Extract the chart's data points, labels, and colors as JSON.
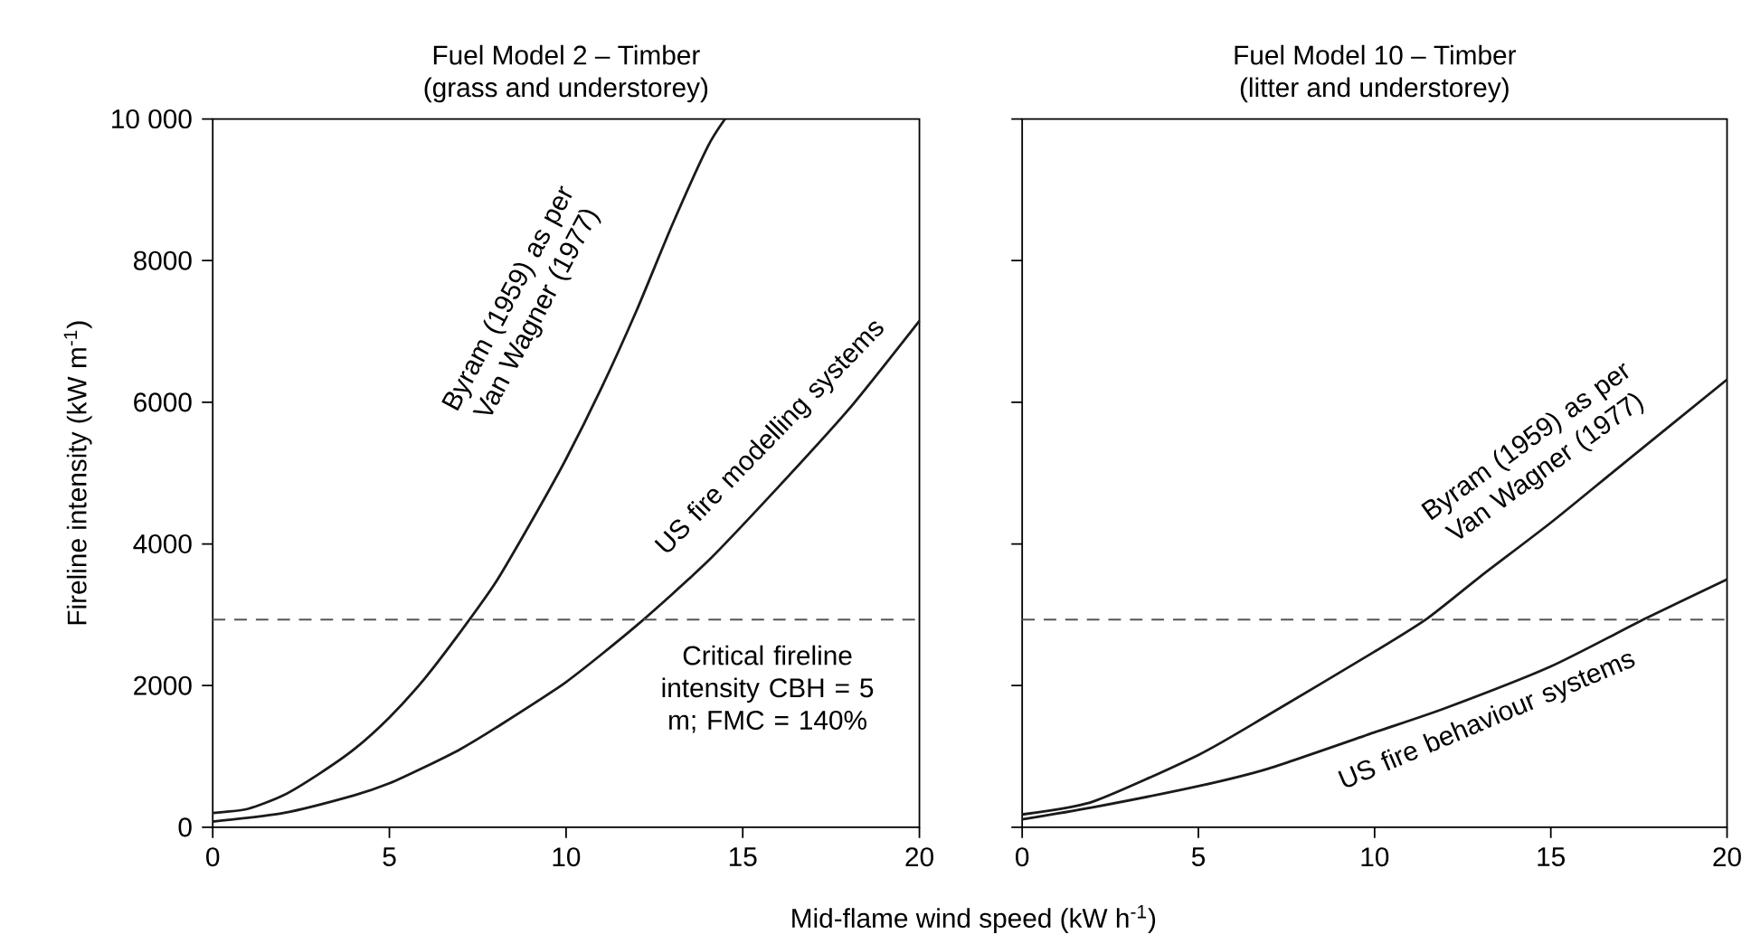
{
  "chart_data": [
    {
      "type": "line",
      "title": "Fuel Model 2 – Timber",
      "subtitle": "(grass and understorey)",
      "xlabel": "Mid-flame wind speed (kW h$^{-1}$)",
      "ylabel": "Fireline intensity (kW m$^{-1}$)",
      "xlim": [
        0,
        20
      ],
      "ylim": [
        0,
        10000
      ],
      "xticks": [
        0,
        5,
        10,
        15,
        20
      ],
      "yticks": [
        0,
        2000,
        4000,
        6000,
        8000,
        {
          "value": 10000,
          "label": "10 000"
        }
      ],
      "series": [
        {
          "name": "Byram (1959) as per Van Wagner (1977)",
          "color": "#1a1a1a",
          "x": [
            0,
            1,
            2,
            3,
            4,
            5,
            6,
            7,
            8,
            9,
            10,
            11,
            12,
            13,
            14,
            14.5
          ],
          "values": [
            200,
            260,
            450,
            750,
            1100,
            1550,
            2100,
            2750,
            3450,
            4300,
            5200,
            6200,
            7300,
            8500,
            9600,
            10000
          ]
        },
        {
          "name": "US fire modelling systems",
          "color": "#1a1a1a",
          "x": [
            0,
            2,
            4,
            5,
            6,
            7,
            8,
            10,
            12,
            14,
            16,
            18,
            20
          ],
          "values": [
            80,
            200,
            450,
            620,
            850,
            1100,
            1400,
            2050,
            2850,
            3750,
            4800,
            5900,
            7150
          ]
        }
      ],
      "annotations": [
        "Critical fireline intensity CBH = 5 m; FMC = 140%"
      ],
      "ref_lines": [
        {
          "axis": "y",
          "value": 2930,
          "color": "#555555",
          "line_style": "dashed"
        }
      ]
    },
    {
      "type": "line",
      "title": "Fuel Model 10 – Timber",
      "subtitle": "(litter and understorey)",
      "xlim": [
        0,
        20
      ],
      "ylim": [
        0,
        10000
      ],
      "xticks": [
        0,
        5,
        10,
        15,
        20
      ],
      "yticks": [
        0,
        2000,
        4000,
        6000,
        8000,
        10000
      ],
      "tick_labels": "x",
      "series": [
        {
          "name": "Byram (1959) as per Van Wagner (1977)",
          "color": "#1a1a1a",
          "x": [
            0,
            2,
            5,
            7,
            10,
            11.5,
            13,
            15,
            17,
            20
          ],
          "values": [
            180,
            360,
            1020,
            1590,
            2480,
            2950,
            3540,
            4300,
            5110,
            6320
          ]
        },
        {
          "name": "US fire behaviour systems",
          "color": "#1a1a1a",
          "x": [
            0,
            2,
            5,
            7,
            10,
            12,
            15,
            17.7,
            20
          ],
          "values": [
            110,
            280,
            580,
            830,
            1340,
            1680,
            2270,
            2950,
            3500
          ]
        }
      ],
      "ref_lines": [
        {
          "axis": "y",
          "value": 2930,
          "color": "#555555",
          "line_style": "dashed"
        }
      ]
    }
  ]
}
